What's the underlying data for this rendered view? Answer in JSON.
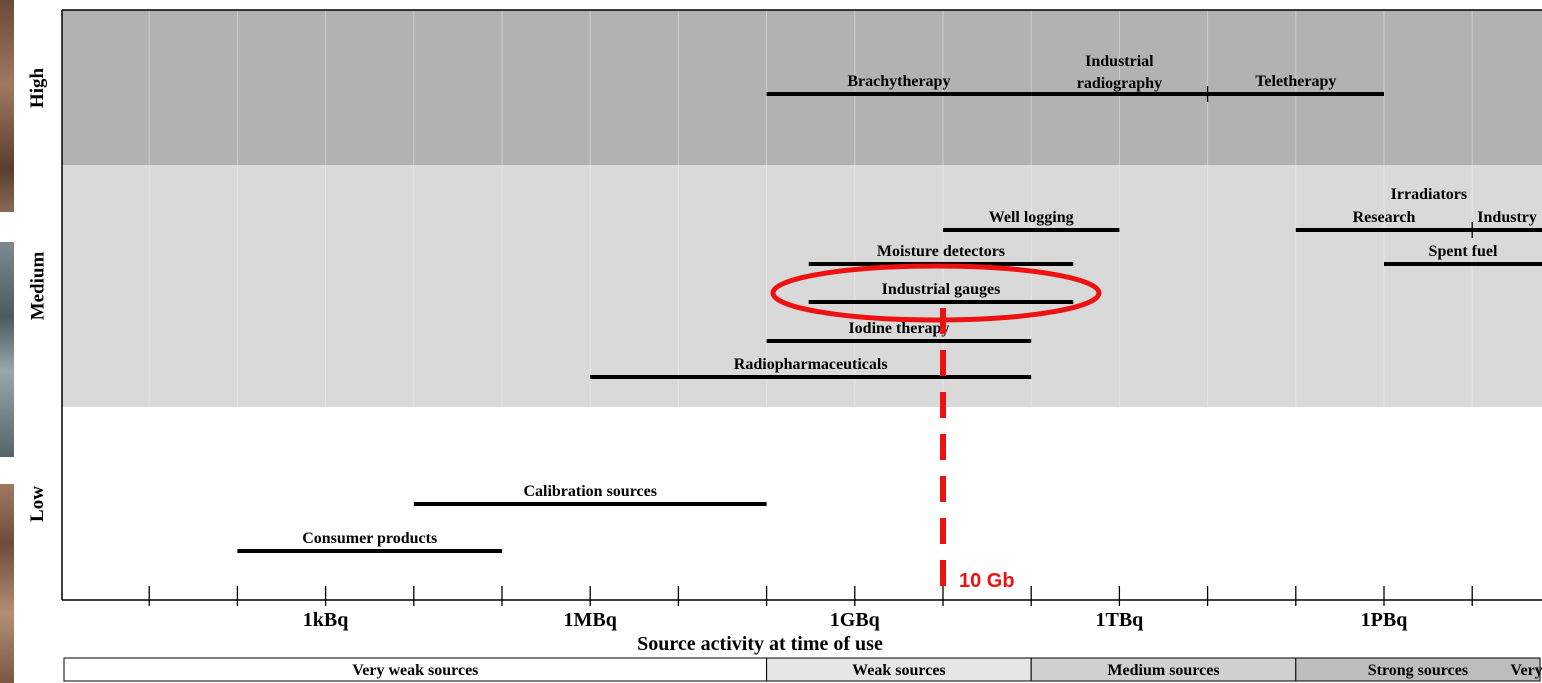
{
  "chart_data": {
    "type": "range",
    "xlabel": "Source activity at time of use",
    "x_scale": "log10",
    "x_unit": "Bq",
    "xlim": [
      1,
      1e+20
    ],
    "x_ticks": [
      10.0,
      100.0,
      1000.0,
      10000.0,
      100000.0,
      1000000.0,
      10000000.0,
      100000000.0,
      1000000000.0,
      10000000000.0,
      100000000000.0,
      1000000000000.0,
      10000000000000.0,
      100000000000000.0,
      1000000000000000.0,
      1e+16,
      1e+17,
      1e+18
    ],
    "x_tick_labels": [
      {
        "value": 1000.0,
        "label": "1kBq"
      },
      {
        "value": 1000000.0,
        "label": "1MBq"
      },
      {
        "value": 1000000000.0,
        "label": "1GBq"
      },
      {
        "value": 1000000000000.0,
        "label": "1TBq"
      },
      {
        "value": 1000000000000000.0,
        "label": "1PBq"
      }
    ],
    "risk_levels": [
      {
        "id": "high",
        "label": "High",
        "color": "#b2b2b2"
      },
      {
        "id": "medium",
        "label": "Medium",
        "color": "#d9d9d9"
      },
      {
        "id": "low",
        "label": "Low",
        "color": "#ffffff"
      }
    ],
    "ranges": [
      {
        "label": "Brachytherapy",
        "level": "high",
        "row": 0,
        "x_min": 100000000.0,
        "x_max": 100000000000.0
      },
      {
        "label": "Industrial radiography",
        "label_lines": [
          "Industrial",
          "radiography"
        ],
        "level": "high",
        "row": 0,
        "x_min": 100000000000.0,
        "x_max": 10000000000000.0
      },
      {
        "label": "Teletherapy",
        "level": "high",
        "row": 0,
        "x_min": 10000000000000.0,
        "x_max": 1000000000000000.0
      },
      {
        "label": "Well logging",
        "level": "medium",
        "row": 0,
        "x_min": 10000000000.0,
        "x_max": 1000000000000.0
      },
      {
        "label": "Research",
        "level": "medium",
        "row": 0,
        "x_min": 100000000000000.0,
        "x_max": 1e+16
      },
      {
        "label": "Industry",
        "level": "medium",
        "row": 0,
        "x_min": 1e+16,
        "x_max": 1e+18
      },
      {
        "label": "Moisture detectors",
        "level": "medium",
        "row": 1,
        "x_min": 300000000.0,
        "x_max": 300000000000.0
      },
      {
        "label": "Spent fuel",
        "level": "medium",
        "row": 1,
        "x_min": 1000000000000000.0,
        "x_max": 1e+18
      },
      {
        "label": "Industrial gauges",
        "level": "medium",
        "row": 2,
        "x_min": 300000000.0,
        "x_max": 300000000000.0
      },
      {
        "label": "Iodine therapy",
        "level": "medium",
        "row": 3,
        "x_min": 100000000.0,
        "x_max": 100000000000.0
      },
      {
        "label": "Radiopharmaceuticals",
        "level": "medium",
        "row": 4,
        "x_min": 1000000.0,
        "x_max": 100000000000.0
      },
      {
        "label": "Calibration sources",
        "level": "low",
        "row": 0,
        "x_min": 10000.0,
        "x_max": 100000000.0
      },
      {
        "label": "Consumer products",
        "level": "low",
        "row": 1,
        "x_min": 100.0,
        "x_max": 100000.0
      }
    ],
    "group_label": {
      "text": "Irradiators"
    },
    "strength_bands": [
      {
        "label": "Very weak sources",
        "x_min": 1,
        "x_max": 100000000.0,
        "color": "#ffffff"
      },
      {
        "label": "Weak sources",
        "x_min": 100000000.0,
        "x_max": 100000000000.0,
        "color": "#e6e6e6"
      },
      {
        "label": "Medium sources",
        "x_min": 100000000000.0,
        "x_max": 100000000000000.0,
        "color": "#d0d0d0"
      },
      {
        "label": "Strong sources",
        "x_min": 100000000000000.0,
        "x_max": 1e+17,
        "color": "#bdbdbd"
      },
      {
        "label": "Very strong",
        "x_min": 1e+17,
        "x_max": 1e+20,
        "color": "#a6a6a6"
      }
    ],
    "annotations": [
      {
        "type": "vertical-dashed-line",
        "x": 10000000000.0,
        "label": "10 Gb",
        "color": "#ee1111"
      },
      {
        "type": "ellipse-highlight",
        "target": "Industrial gauges",
        "color": "#ee1111"
      }
    ],
    "grid": true,
    "legend": "none"
  }
}
